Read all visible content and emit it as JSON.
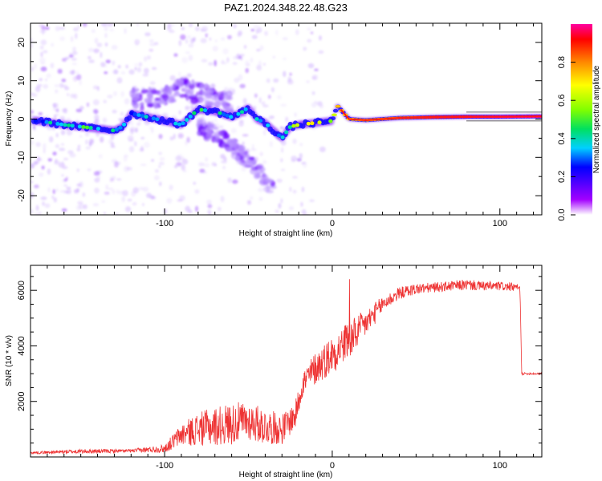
{
  "title": "PAZ1.2024.348.22.48.G23",
  "chart_data": [
    {
      "type": "heatmap",
      "xlabel": "Height of straight line (km)",
      "ylabel": "Frequency (Hz)",
      "xlim": [
        -180,
        125
      ],
      "ylim": [
        -25,
        25
      ],
      "xticks": [
        -100,
        0,
        100
      ],
      "yticks": [
        -20,
        -10,
        0,
        10,
        20
      ],
      "colorbar": {
        "label": "Normalized spectral amplitude",
        "range": [
          0,
          1
        ],
        "ticks": [
          0.0,
          0.2,
          0.4,
          0.6,
          0.8
        ],
        "tick_labels": [
          "0.0",
          "0.2",
          "0.4",
          "0.6",
          "0.8"
        ]
      },
      "ridge": {
        "x": [
          -175,
          -160,
          -150,
          -140,
          -130,
          -125,
          -120,
          -110,
          -100,
          -90,
          -80,
          -70,
          -60,
          -55,
          -50,
          -45,
          -40,
          -35,
          -30,
          -25,
          -20,
          -10,
          0,
          3,
          10,
          20,
          40,
          60,
          80,
          100,
          125
        ],
        "y": [
          -0.5,
          -1.5,
          -2,
          -2.5,
          -3,
          -2,
          1.5,
          0.5,
          -0.5,
          -1.5,
          2.5,
          2,
          0.5,
          1.5,
          3,
          0,
          -1,
          -3,
          -5,
          -2,
          -1.5,
          -1,
          -0.5,
          3.5,
          0,
          -0.3,
          0.3,
          0.5,
          0.6,
          0.6,
          0.7
        ],
        "amplitude": [
          0.3,
          0.4,
          0.45,
          0.4,
          0.35,
          0.3,
          0.3,
          0.35,
          0.4,
          0.35,
          0.45,
          0.4,
          0.35,
          0.3,
          0.45,
          0.4,
          0.35,
          0.4,
          0.3,
          0.45,
          0.55,
          0.6,
          0.55,
          0.75,
          0.7,
          0.75,
          0.8,
          0.9,
          0.95,
          1.0,
          1.0
        ]
      },
      "upper_branch": {
        "x": [
          -120,
          -100,
          -90,
          -80,
          -70,
          -60
        ],
        "y": [
          5,
          6,
          8,
          7,
          5,
          4
        ]
      },
      "lower_branch": {
        "x": [
          -80,
          -70,
          -60,
          -55,
          -50,
          -45,
          -40,
          -35
        ],
        "y": [
          -2,
          -4,
          -7,
          -9,
          -11,
          -13,
          -16,
          -18
        ]
      }
    },
    {
      "type": "line",
      "xlabel": "Height of straight line (km)",
      "ylabel": "SNR (10 * v/v)",
      "xlim": [
        -180,
        125
      ],
      "ylim": [
        0,
        6900
      ],
      "xticks": [
        -100,
        0,
        100
      ],
      "yticks": [
        2000,
        4000,
        6000
      ],
      "series": [
        {
          "color": "#ee3333",
          "x": [
            -180,
            -150,
            -120,
            -100,
            -90,
            -80,
            -70,
            -60,
            -50,
            -40,
            -30,
            -22,
            -18,
            -10,
            0,
            10,
            20,
            30,
            40,
            50,
            60,
            70,
            80,
            90,
            100,
            110,
            112,
            113,
            125
          ],
          "y": [
            150,
            200,
            220,
            300,
            800,
            1000,
            1100,
            1200,
            1300,
            1100,
            1000,
            1500,
            2600,
            3200,
            3700,
            4200,
            4800,
            5500,
            5900,
            6050,
            6100,
            6150,
            6200,
            6150,
            6150,
            6100,
            6050,
            3000,
            3000
          ],
          "noise": [
            40,
            80,
            60,
            150,
            400,
            600,
            700,
            750,
            700,
            650,
            550,
            500,
            500,
            600,
            700,
            700,
            500,
            300,
            220,
            200,
            180,
            180,
            200,
            170,
            170,
            140,
            120,
            40,
            40
          ]
        }
      ]
    }
  ]
}
